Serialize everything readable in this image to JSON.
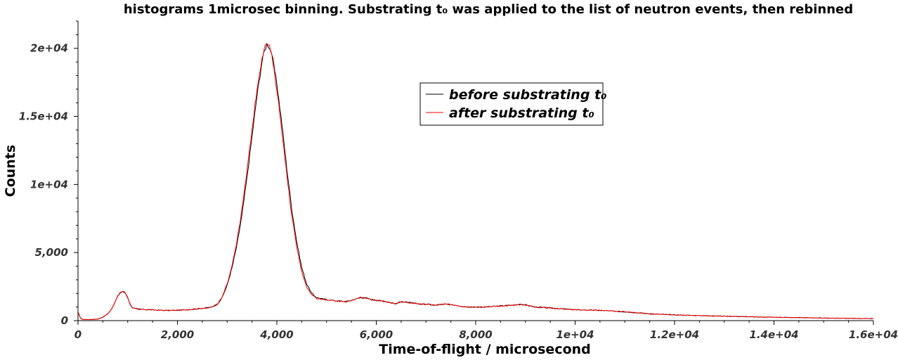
{
  "chart_data": {
    "type": "line",
    "title": "histograms 1microsec binning. Substrating t₀ was applied to the list of neutron events, then rebinned",
    "xlabel": "Time-of-flight / microsecond",
    "ylabel": "Counts",
    "xlim": [
      0,
      16000
    ],
    "ylim": [
      0,
      22000
    ],
    "x_ticks": [
      {
        "value": 0,
        "label": "0"
      },
      {
        "value": 2000,
        "label": "2,000"
      },
      {
        "value": 4000,
        "label": "4,000"
      },
      {
        "value": 6000,
        "label": "6,000"
      },
      {
        "value": 8000,
        "label": "8,000"
      },
      {
        "value": 10000,
        "label": "1e+04"
      },
      {
        "value": 12000,
        "label": "1.2e+04"
      },
      {
        "value": 14000,
        "label": "1.4e+04"
      },
      {
        "value": 16000,
        "label": "1.6e+04"
      }
    ],
    "y_ticks": [
      {
        "value": 0,
        "label": "0"
      },
      {
        "value": 5000,
        "label": "5,000"
      },
      {
        "value": 10000,
        "label": "1e+04"
      },
      {
        "value": 15000,
        "label": "1.5e+04"
      },
      {
        "value": 20000,
        "label": "2e+04"
      }
    ],
    "grid": false,
    "legend_position": "upper-center",
    "series": [
      {
        "name": "before substrating t₀",
        "color": "#000000",
        "x": [
          0,
          50,
          100,
          200,
          300,
          400,
          500,
          600,
          700,
          750,
          800,
          850,
          900,
          950,
          1000,
          1050,
          1100,
          1150,
          1200,
          1400,
          1600,
          1800,
          2000,
          2200,
          2400,
          2600,
          2700,
          2800,
          2900,
          3000,
          3100,
          3200,
          3300,
          3400,
          3500,
          3600,
          3700,
          3750,
          3800,
          3850,
          3900,
          4000,
          4100,
          4200,
          4300,
          4400,
          4500,
          4600,
          4700,
          4800,
          4900,
          5000,
          5200,
          5400,
          5600,
          5700,
          5800,
          5900,
          6000,
          6100,
          6200,
          6300,
          6400,
          6500,
          6600,
          6700,
          6800,
          7000,
          7200,
          7400,
          7600,
          7800,
          8000,
          8200,
          8400,
          8600,
          8800,
          8900,
          9000,
          9200,
          9400,
          9600,
          9800,
          10000,
          10500,
          11000,
          11500,
          12000,
          12500,
          13000,
          13500,
          14000,
          14500,
          15000,
          15500,
          16000
        ],
        "y": [
          600,
          200,
          80,
          80,
          90,
          120,
          250,
          500,
          1000,
          1400,
          1800,
          2050,
          2150,
          2050,
          1700,
          1200,
          950,
          880,
          850,
          800,
          770,
          750,
          760,
          800,
          870,
          950,
          1000,
          1200,
          1700,
          2600,
          3900,
          5600,
          7800,
          10500,
          13500,
          16500,
          19000,
          19800,
          20300,
          20100,
          19600,
          17400,
          14500,
          11200,
          8200,
          5800,
          3900,
          2700,
          2000,
          1700,
          1600,
          1550,
          1450,
          1400,
          1600,
          1700,
          1650,
          1550,
          1500,
          1450,
          1400,
          1300,
          1250,
          1400,
          1350,
          1300,
          1250,
          1200,
          1150,
          1250,
          1100,
          1000,
          1000,
          1000,
          1050,
          1100,
          1150,
          1200,
          1150,
          1000,
          950,
          900,
          850,
          800,
          750,
          650,
          500,
          420,
          370,
          330,
          280,
          250,
          220,
          190,
          170,
          150
        ]
      },
      {
        "name": "after substrating t₀",
        "color": "#ff0000",
        "x": [
          0,
          50,
          100,
          200,
          300,
          400,
          500,
          600,
          700,
          750,
          800,
          850,
          900,
          950,
          1000,
          1050,
          1100,
          1150,
          1200,
          1400,
          1600,
          1800,
          2000,
          2200,
          2400,
          2600,
          2700,
          2800,
          2900,
          3000,
          3100,
          3200,
          3300,
          3400,
          3500,
          3600,
          3700,
          3750,
          3800,
          3850,
          3900,
          4000,
          4100,
          4200,
          4300,
          4400,
          4500,
          4600,
          4700,
          4800,
          4900,
          5000,
          5200,
          5400,
          5600,
          5700,
          5800,
          5900,
          6000,
          6100,
          6200,
          6300,
          6400,
          6500,
          6600,
          6700,
          6800,
          7000,
          7200,
          7400,
          7600,
          7800,
          8000,
          8200,
          8400,
          8600,
          8800,
          8900,
          9000,
          9200,
          9400,
          9600,
          9800,
          10000,
          10500,
          11000,
          11500,
          12000,
          12500,
          13000,
          13500,
          14000,
          14500,
          15000,
          15500,
          16000
        ],
        "y": [
          600,
          200,
          80,
          80,
          90,
          120,
          250,
          500,
          1000,
          1400,
          1800,
          2050,
          2150,
          2050,
          1700,
          1200,
          950,
          880,
          850,
          800,
          770,
          750,
          760,
          800,
          870,
          950,
          1000,
          1200,
          1700,
          2700,
          4100,
          5900,
          8200,
          11000,
          14000,
          17000,
          19300,
          20000,
          20400,
          20100,
          19400,
          17000,
          14000,
          10700,
          7700,
          5400,
          3600,
          2500,
          1900,
          1650,
          1580,
          1530,
          1430,
          1390,
          1600,
          1700,
          1650,
          1550,
          1500,
          1450,
          1400,
          1300,
          1250,
          1400,
          1350,
          1300,
          1250,
          1200,
          1150,
          1250,
          1100,
          1000,
          1000,
          1000,
          1050,
          1100,
          1150,
          1200,
          1150,
          1000,
          950,
          900,
          850,
          800,
          750,
          650,
          500,
          420,
          370,
          330,
          280,
          250,
          220,
          190,
          170,
          150
        ]
      }
    ]
  }
}
